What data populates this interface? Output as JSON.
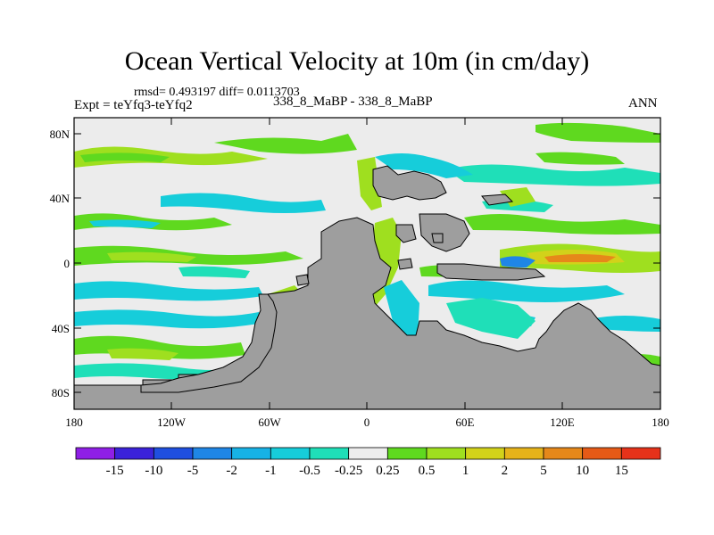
{
  "title": "Ocean Vertical Velocity at 10m (in cm/day)",
  "stats_line": "rmsd= 0.493197 diff= 0.0113703",
  "expt_line": "Expt = teYfq3-teYfq2",
  "subtitle": "338_8_MaBP - 338_8_MaBP",
  "season": "ANN",
  "lat_ticks": [
    "80N",
    "40N",
    "0",
    "40S",
    "80S"
  ],
  "lon_ticks": [
    "180",
    "120W",
    "60W",
    "0",
    "60E",
    "120E",
    "180"
  ],
  "colorbar": {
    "colors": [
      "#8f1fe6",
      "#3b22d9",
      "#1f4fe0",
      "#1f86e6",
      "#17b2e6",
      "#16cdda",
      "#1fdfb8",
      "#ededed",
      "#5fd91f",
      "#9fdf1f",
      "#d2d21a",
      "#e6b31a",
      "#e6881a",
      "#e65a17",
      "#e6321a"
    ],
    "labels": [
      "-15",
      "-10",
      "-5",
      "-2",
      "-1",
      "-0.5",
      "-0.25",
      "0.25",
      "0.5",
      "1",
      "2",
      "5",
      "10",
      "15"
    ]
  },
  "colors": {
    "land": "#9e9e9e",
    "ocean_background": "#ececec",
    "cyan": "#16cdda",
    "turquoise": "#1fdfb8",
    "green": "#5fd91f",
    "lime": "#9fdf1f",
    "yellow": "#d2d21a",
    "orange": "#e6881a",
    "blue": "#1f86e6"
  }
}
